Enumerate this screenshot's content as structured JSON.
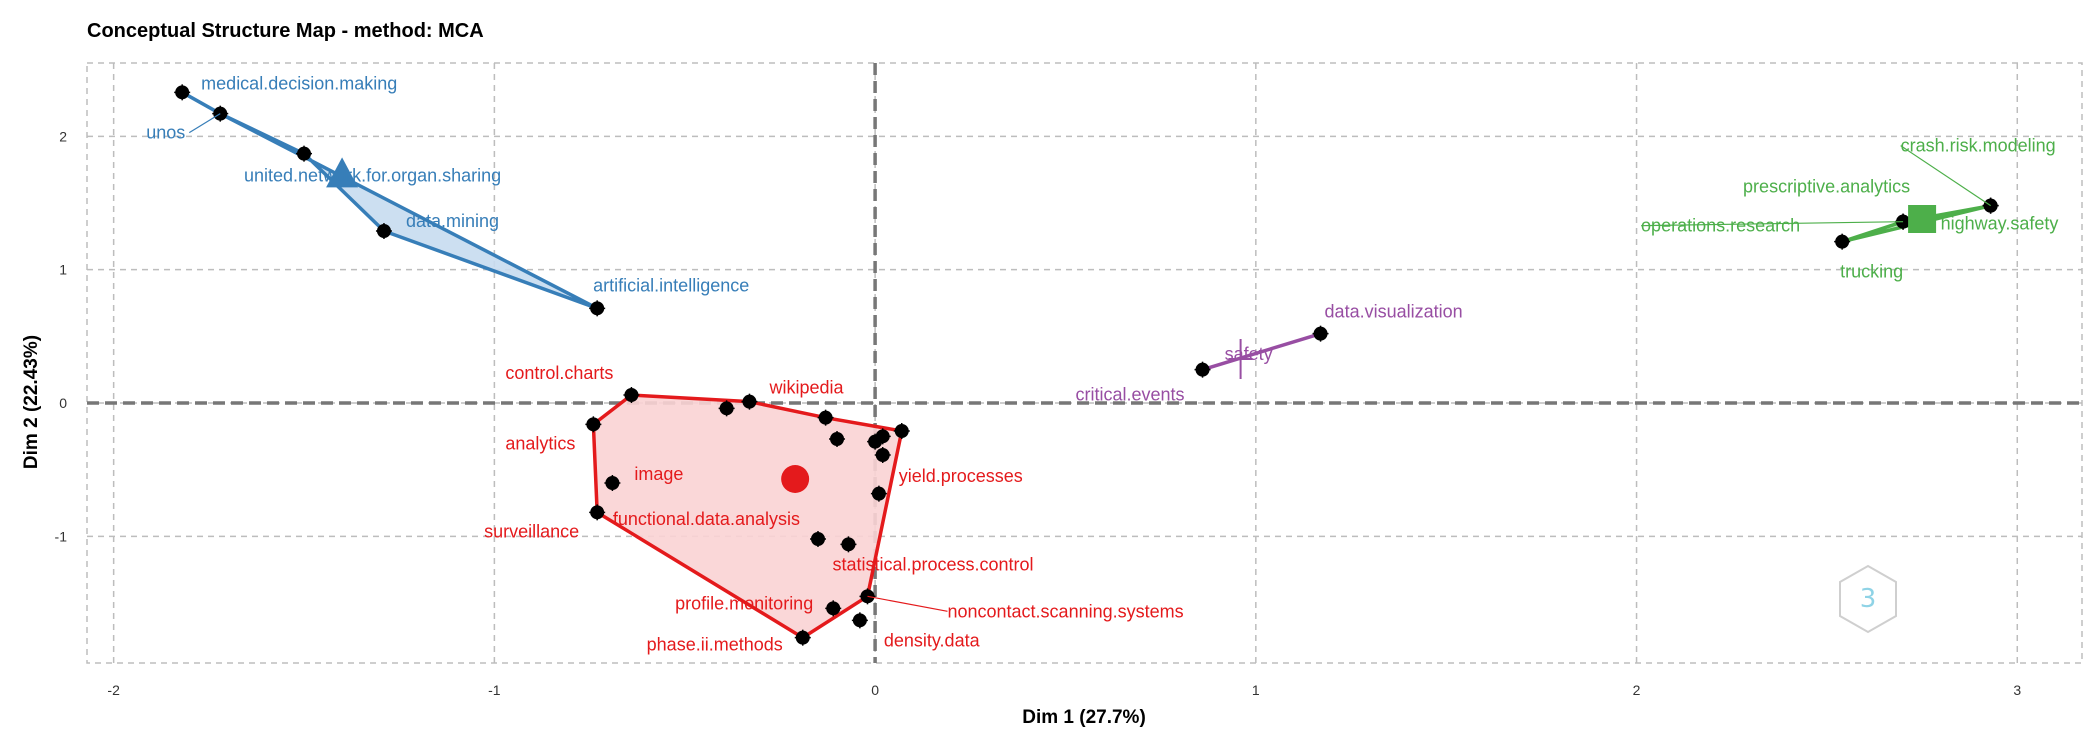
{
  "chart_data": {
    "type": "scatter",
    "title": "Conceptual Structure Map - method: MCA",
    "xlabel": "Dim 1 (27.7%)",
    "ylabel": "Dim 2 (22.43%)",
    "xlim": [
      -2.07,
      3.17
    ],
    "ylim": [
      -1.95,
      2.55
    ],
    "x_ticks": [
      -2,
      -1,
      0,
      1,
      2,
      3
    ],
    "y_ticks": [
      -1,
      0,
      1,
      2
    ],
    "grid": true,
    "clusters": [
      {
        "color": "#377EB8",
        "fill": "#C6DBEF",
        "centroid": [
          -1.4,
          1.7
        ],
        "centroid_shape": "triangle",
        "hull": [
          [
            -1.82,
            2.33
          ],
          [
            -1.72,
            2.17
          ],
          [
            -1.5,
            1.87
          ],
          [
            -1.29,
            1.29
          ],
          [
            -0.73,
            0.71
          ],
          [
            -1.72,
            2.17
          ]
        ],
        "points": [
          {
            "label": "medical.decision.making",
            "x": -1.82,
            "y": 2.33
          },
          {
            "label": "unos",
            "x": -1.72,
            "y": 2.17
          },
          {
            "label": "united.network.for.organ.sharing",
            "x": -1.5,
            "y": 1.87
          },
          {
            "label": "data.mining",
            "x": -1.29,
            "y": 1.29
          },
          {
            "label": "artificial.intelligence",
            "x": -0.73,
            "y": 0.71
          }
        ]
      },
      {
        "color": "#E41A1C",
        "fill": "#F9D3D4",
        "centroid": [
          -0.21,
          -0.57
        ],
        "centroid_shape": "circle",
        "hull": [
          [
            -0.64,
            0.06
          ],
          [
            -0.33,
            0.01
          ],
          [
            -0.13,
            -0.11
          ],
          [
            0.07,
            -0.21
          ],
          [
            -0.02,
            -1.45
          ],
          [
            -0.19,
            -1.76
          ],
          [
            -0.73,
            -0.82
          ],
          [
            -0.74,
            -0.16
          ],
          [
            -0.64,
            0.06
          ]
        ],
        "points": [
          {
            "label": "control.charts",
            "x": -0.64,
            "y": 0.06
          },
          {
            "label": "wikipedia",
            "x": -0.33,
            "y": 0.01
          },
          {
            "label": "analytics",
            "x": -0.74,
            "y": -0.16
          },
          {
            "label": "image",
            "x": -0.69,
            "y": -0.6
          },
          {
            "label": "yield.processes",
            "x": 0.07,
            "y": -0.21
          },
          {
            "label": "functional.data.analysis",
            "x": -0.15,
            "y": -1.02
          },
          {
            "label": "surveillance",
            "x": -0.73,
            "y": -0.82
          },
          {
            "label": "statistical.process.control",
            "x": -0.07,
            "y": -1.06
          },
          {
            "label": "profile.monitoring",
            "x": -0.11,
            "y": -1.54
          },
          {
            "label": "noncontact.scanning.systems",
            "x": -0.02,
            "y": -1.45
          },
          {
            "label": "phase.ii.methods",
            "x": -0.19,
            "y": -1.76
          },
          {
            "label": "density.data",
            "x": -0.04,
            "y": -1.63
          },
          {
            "label": "",
            "x": -0.39,
            "y": -0.04
          },
          {
            "label": "",
            "x": -0.13,
            "y": -0.11
          },
          {
            "label": "",
            "x": -0.1,
            "y": -0.27
          },
          {
            "label": "",
            "x": 0.0,
            "y": -0.29
          },
          {
            "label": "",
            "x": 0.02,
            "y": -0.25
          },
          {
            "label": "",
            "x": 0.02,
            "y": -0.39
          },
          {
            "label": "",
            "x": 0.01,
            "y": -0.68
          }
        ]
      },
      {
        "color": "#984EA3",
        "fill": "#E7D4EA",
        "centroid": [
          0.96,
          0.33
        ],
        "centroid_shape": "cross",
        "hull": [
          [
            0.86,
            0.25
          ],
          [
            1.17,
            0.52
          ],
          [
            0.86,
            0.25
          ]
        ],
        "points": [
          {
            "label": "data.visualization",
            "x": 1.17,
            "y": 0.52
          },
          {
            "label": "safety",
            "x": 0.96,
            "y": 0.33
          },
          {
            "label": "critical.events",
            "x": 0.86,
            "y": 0.25
          }
        ]
      },
      {
        "color": "#4DAF4A",
        "fill": "#CDEBCB",
        "centroid": [
          2.75,
          1.38
        ],
        "centroid_shape": "square",
        "hull": [
          [
            2.54,
            1.21
          ],
          [
            2.7,
            1.36
          ],
          [
            2.93,
            1.48
          ],
          [
            2.54,
            1.21
          ]
        ],
        "points": [
          {
            "label": "crash.risk.modeling",
            "x": 2.93,
            "y": 1.48
          },
          {
            "label": "prescriptive.analytics",
            "x": 2.7,
            "y": 1.36
          },
          {
            "label": "operations.research",
            "x": 2.7,
            "y": 1.36
          },
          {
            "label": "highway.safety",
            "x": 2.93,
            "y": 1.48
          },
          {
            "label": "trucking",
            "x": 2.54,
            "y": 1.21
          }
        ]
      }
    ]
  }
}
